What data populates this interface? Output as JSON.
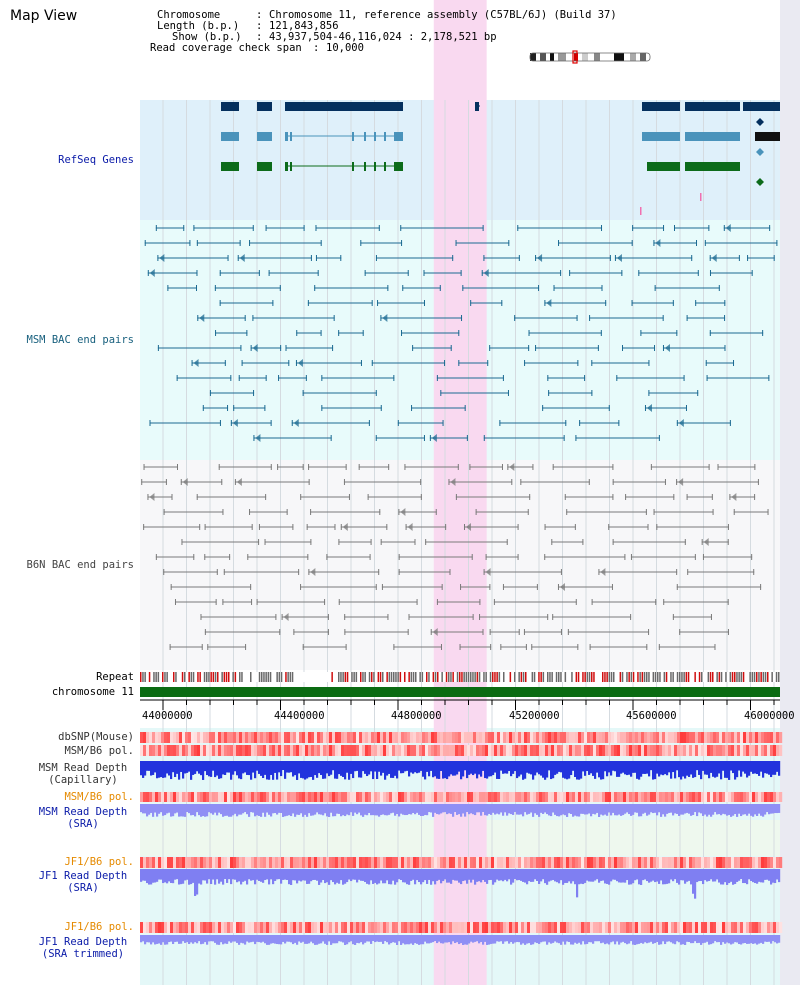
{
  "title": "Map View",
  "info": {
    "chromosome_label": "Chromosome",
    "chromosome_value": "Chromosome 11, reference assembly (C57BL/6J) (Build 37)",
    "length_label": "Length (b.p.)",
    "length_value": "121,843,856",
    "show_label": "Show (b.p.)",
    "show_value": "43,937,504-46,116,024 : 2,178,521 bp",
    "coverage_label": "Read coverage check span",
    "coverage_value": "10,000"
  },
  "view": {
    "start": 43937504,
    "end": 46116024,
    "highlight_start": 44937504,
    "highlight_end": 45117504
  },
  "tracks": {
    "refseq": "RefSeq Genes",
    "msm_bac": "MSM BAC end pairs",
    "b6n_bac": "B6N BAC end pairs",
    "repeat": "Repeat",
    "chromosome": "chromosome 11",
    "dbsnp": "dbSNP(Mouse)",
    "msm_b6_pol_1": "MSM/B6 pol.",
    "msm_depth_cap_1": "MSM Read Depth",
    "msm_depth_cap_2": "(Capillary)",
    "msm_b6_pol_2": "MSM/B6 pol.",
    "msm_depth_sra_1": "MSM Read Depth",
    "msm_depth_sra_2": "(SRA)",
    "jf1_pol_1": "JF1/B6 pol.",
    "jf1_depth_sra_1": "JF1 Read Depth",
    "jf1_depth_sra_2": "(SRA)",
    "jf1_pol_2": "JF1/B6 pol.",
    "jf1_depth_trim_1": "JF1 Read Depth",
    "jf1_depth_trim_2": "(SRA trimmed)"
  },
  "axis": {
    "ticks": [
      "44000000",
      "44400000",
      "44800000",
      "45200000",
      "45600000",
      "46000000"
    ]
  },
  "colors": {
    "track_bg": "#dff0fa",
    "bac_bg": "#e8fbfb",
    "b6n_bg": "#f7f7f9",
    "highlight": "#f9d9f0",
    "refseq_dark": "#05305e",
    "refseq_mid": "#4a93bb",
    "refseq_green": "#0c6b1a",
    "msm_bac": "#1b6a92",
    "b6n_bac": "#7a7a7a",
    "chromosome": "#0b6b12",
    "label_dark": "#222222",
    "label_blue": "#0a1aa8",
    "label_orange": "#e58a00",
    "label_teal": "#18607e"
  }
}
